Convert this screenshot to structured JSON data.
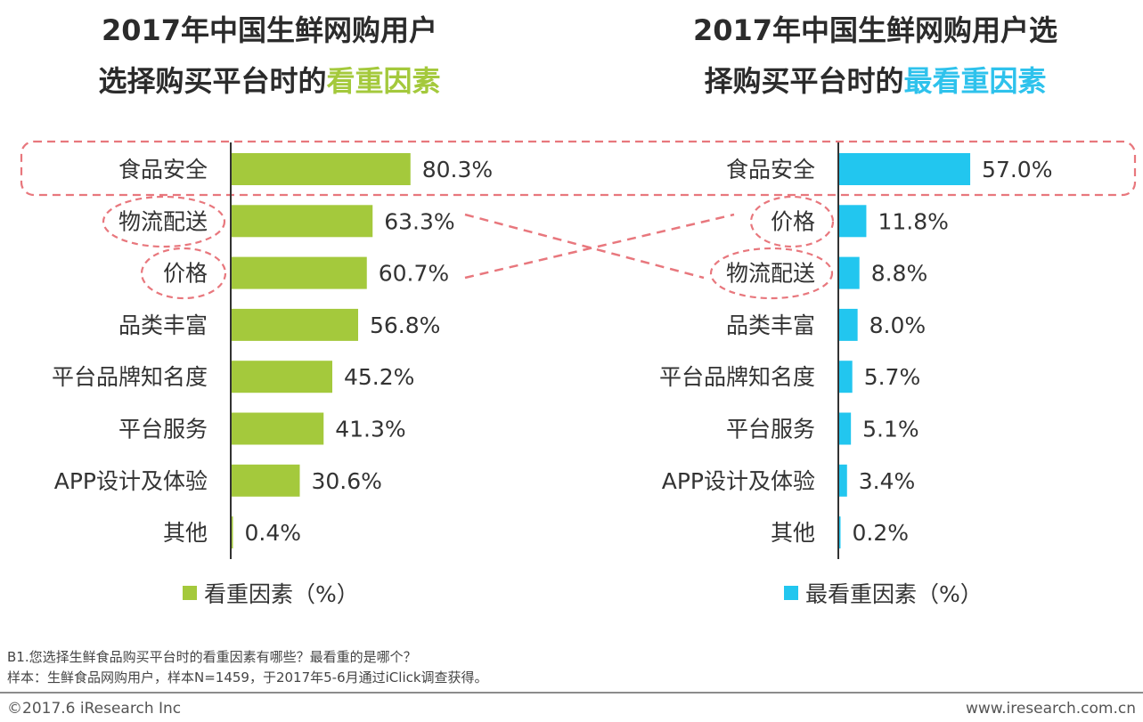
{
  "chart_data": [
    {
      "type": "bar",
      "orientation": "horizontal",
      "title": "2017年中国生鲜网购用户选择购买平台时的看重因素",
      "title_lines": [
        "2017年中国生鲜网购用户",
        "选择购买平台时的",
        "看重因素"
      ],
      "categories": [
        "食品安全",
        "物流配送",
        "价格",
        "品类丰富",
        "平台品牌知名度",
        "平台服务",
        "APP设计及体验",
        "其他"
      ],
      "values": [
        80.3,
        63.3,
        60.7,
        56.8,
        45.2,
        41.3,
        30.6,
        0.4
      ],
      "value_labels": [
        "80.3%",
        "63.3%",
        "60.7%",
        "56.8%",
        "45.2%",
        "41.3%",
        "30.6%",
        "0.4%"
      ],
      "legend": "看重因素（%）",
      "color": "#a4c93c",
      "xlim": [
        0,
        100
      ]
    },
    {
      "type": "bar",
      "orientation": "horizontal",
      "title": "2017年中国生鲜网购用户选择购买平台时的最看重因素",
      "title_lines": [
        "2017年中国生鲜网购用户选",
        "择购买平台时的",
        "最看重因素"
      ],
      "categories": [
        "食品安全",
        "价格",
        "物流配送",
        "品类丰富",
        "平台品牌知名度",
        "平台服务",
        "APP设计及体验",
        "其他"
      ],
      "values": [
        57.0,
        11.8,
        8.8,
        8.0,
        5.7,
        5.1,
        3.4,
        0.2
      ],
      "value_labels": [
        "57.0%",
        "11.8%",
        "8.8%",
        "8.0%",
        "5.7%",
        "5.1%",
        "3.4%",
        "0.2%"
      ],
      "legend": "最看重因素（%）",
      "color": "#22c6ef",
      "xlim": [
        0,
        100
      ]
    }
  ],
  "notes": {
    "question": "B1.您选择生鲜食品购买平台时的看重因素有哪些？最看重的是哪个？",
    "sample": "样本：生鲜食品网购用户，样本N=1459，于2017年5-6月通过iClick调查获得。"
  },
  "footer": {
    "copyright": "©2017.6 iResearch Inc",
    "website": "www.iresearch.com.cn"
  }
}
